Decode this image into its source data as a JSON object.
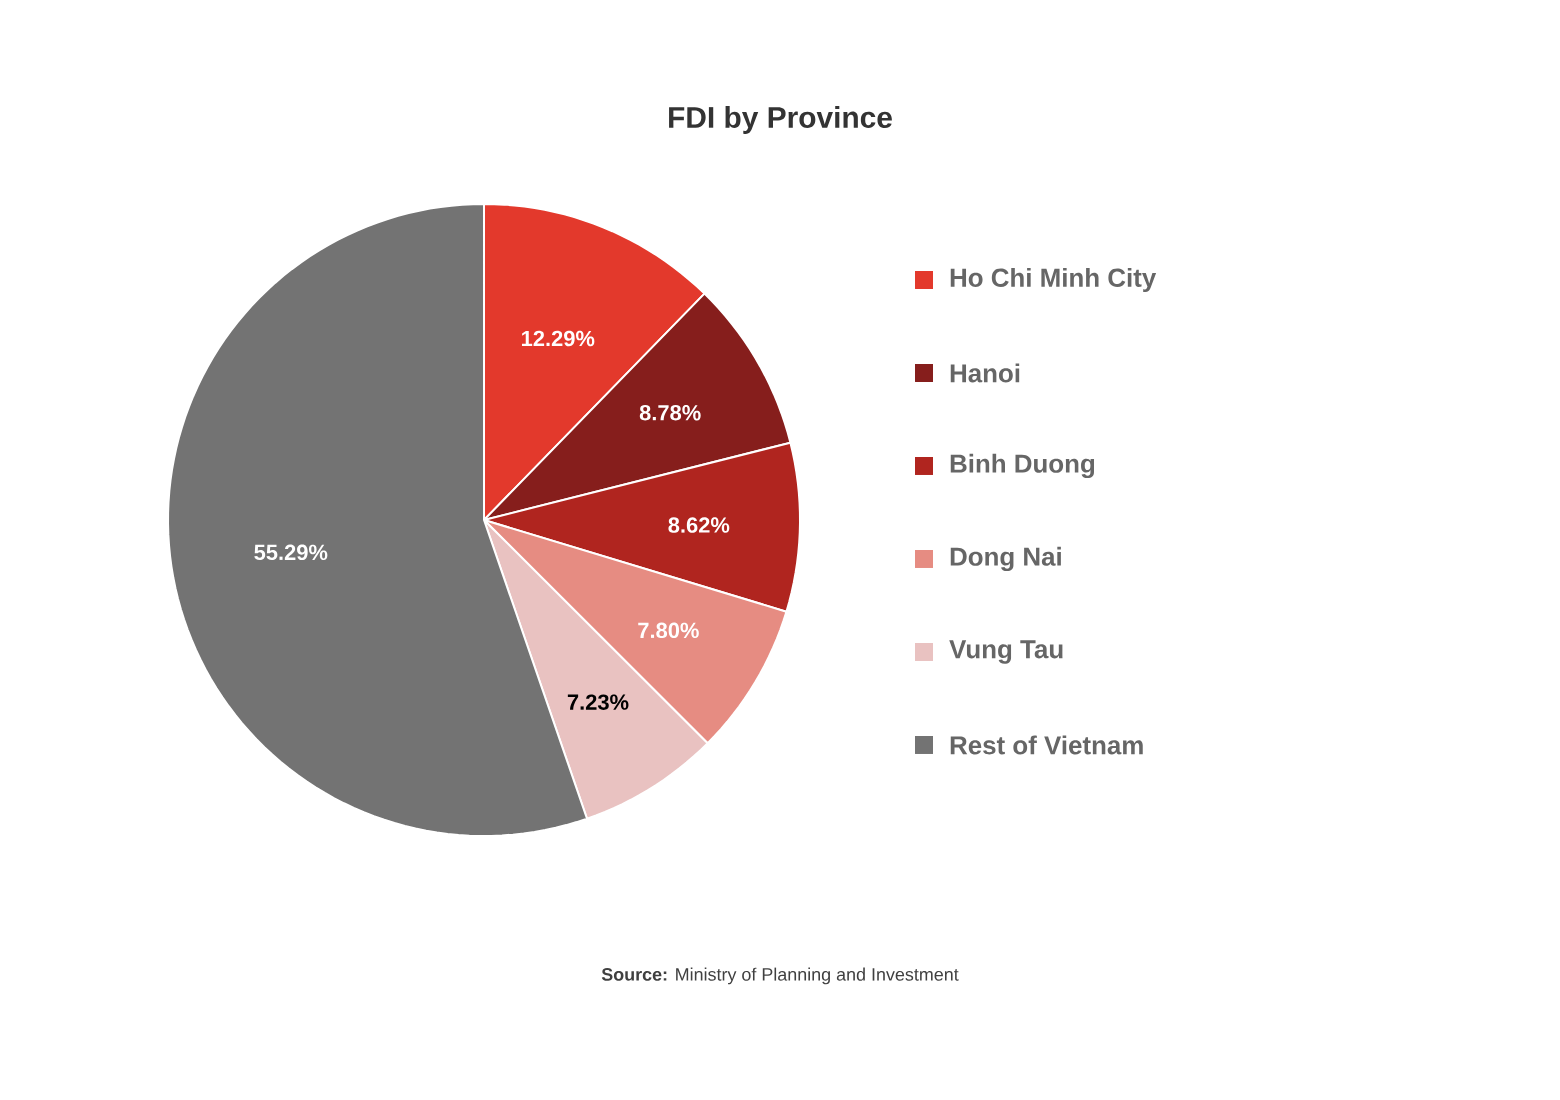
{
  "chart_data": {
    "type": "pie",
    "title": "FDI by Province",
    "categories": [
      "Ho Chi Minh City",
      "Hanoi",
      "Binh Duong",
      "Dong Nai",
      "Vung Tau",
      "Rest of Vietnam"
    ],
    "values": [
      12.29,
      8.78,
      8.62,
      7.8,
      7.23,
      55.29
    ],
    "colors": [
      "#e3392c",
      "#861e1c",
      "#b0251f",
      "#e68c82",
      "#e9c2c1",
      "#737373"
    ],
    "value_labels": [
      "12.29%",
      "8.78%",
      "8.62%",
      "7.80%",
      "7.23%",
      "55.29%"
    ],
    "legend": "right",
    "annotations": [
      "**Source:** Ministry of Planning and Investment"
    ]
  }
}
